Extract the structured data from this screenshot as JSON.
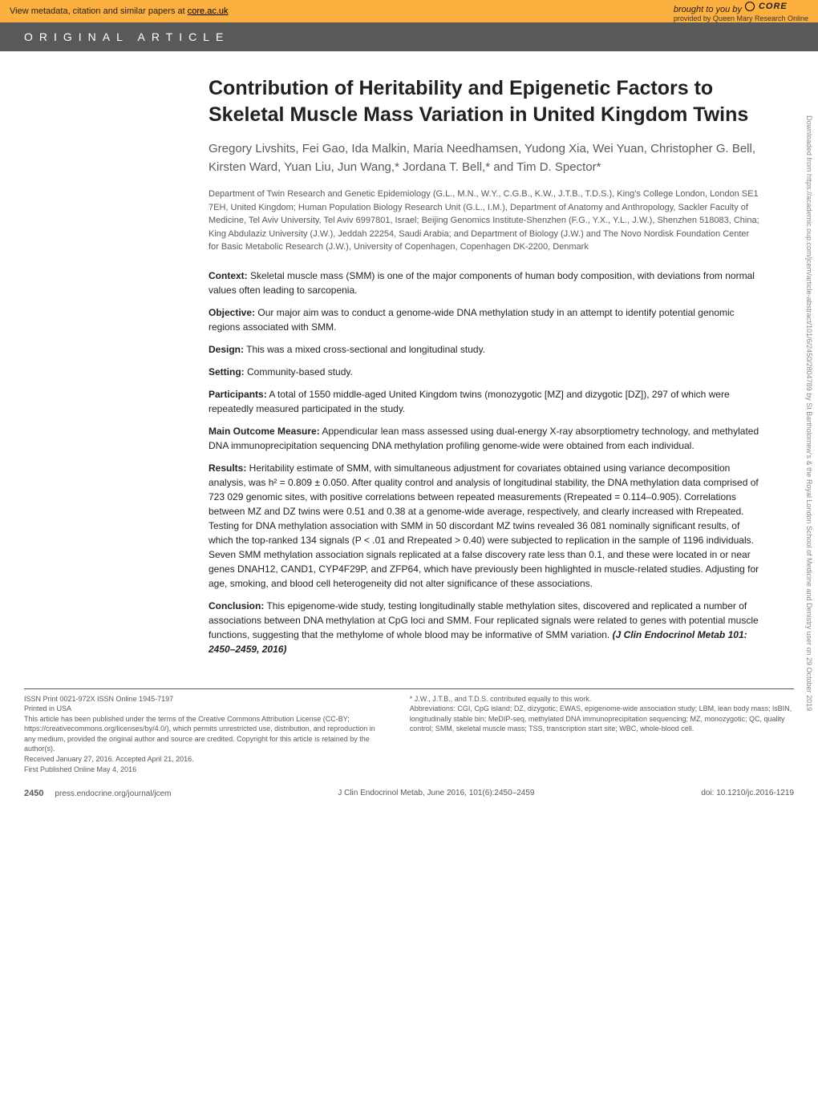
{
  "topbar": {
    "left_text": "View metadata, citation and similar papers at ",
    "left_link": "core.ac.uk",
    "right_prefix": "brought to you by ",
    "core": "CORE",
    "provided": "provided by Queen Mary Research Online"
  },
  "article_type": "ORIGINAL ARTICLE",
  "title": "Contribution of Heritability and Epigenetic Factors to Skeletal Muscle Mass Variation in United Kingdom Twins",
  "authors": "Gregory Livshits, Fei Gao, Ida Malkin, Maria Needhamsen, Yudong Xia, Wei Yuan, Christopher G. Bell, Kirsten Ward, Yuan Liu, Jun Wang,* Jordana T. Bell,* and Tim D. Spector*",
  "affiliations": "Department of Twin Research and Genetic Epidemiology (G.L., M.N., W.Y., C.G.B., K.W., J.T.B., T.D.S.), King's College London, London SE1 7EH, United Kingdom; Human Population Biology Research Unit (G.L., I.M.), Department of Anatomy and Anthropology, Sackler Faculty of Medicine, Tel Aviv University, Tel Aviv 6997801, Israel; Beijing Genomics Institute-Shenzhen (F.G., Y.X., Y.L., J.W.), Shenzhen 518083, China; King Abdulaziz University (J.W.), Jeddah 22254, Saudi Arabia; and Department of Biology (J.W.) and The Novo Nordisk Foundation Center for Basic Metabolic Research (J.W.), University of Copenhagen, Copenhagen DK-2200, Denmark",
  "abstract": {
    "context": {
      "label": "Context:",
      "text": " Skeletal muscle mass (SMM) is one of the major components of human body composition, with deviations from normal values often leading to sarcopenia."
    },
    "objective": {
      "label": "Objective:",
      "text": " Our major aim was to conduct a genome-wide DNA methylation study in an attempt to identify potential genomic regions associated with SMM."
    },
    "design": {
      "label": "Design:",
      "text": " This was a mixed cross-sectional and longitudinal study."
    },
    "setting": {
      "label": "Setting:",
      "text": " Community-based study."
    },
    "participants": {
      "label": "Participants:",
      "text": " A total of 1550 middle-aged United Kingdom twins (monozygotic [MZ] and dizygotic [DZ]), 297 of which were repeatedly measured participated in the study."
    },
    "main_outcome": {
      "label": "Main Outcome Measure:",
      "text": " Appendicular lean mass assessed using dual-energy X-ray absorptiometry technology, and methylated DNA immunoprecipitation sequencing DNA methylation profiling genome-wide were obtained from each individual."
    },
    "results": {
      "label": "Results:",
      "text": " Heritability estimate of SMM, with simultaneous adjustment for covariates obtained using variance decomposition analysis, was h² = 0.809 ± 0.050. After quality control and analysis of longitudinal stability, the DNA methylation data comprised of 723 029 genomic sites, with positive correlations between repeated measurements (Rrepeated = 0.114–0.905). Correlations between MZ and DZ twins were 0.51 and 0.38 at a genome-wide average, respectively, and clearly increased with Rrepeated. Testing for DNA methylation association with SMM in 50 discordant MZ twins revealed 36 081 nominally significant results, of which the top-ranked 134 signals (P < .01 and Rrepeated > 0.40) were subjected to replication in the sample of 1196 individuals. Seven SMM methylation association signals replicated at a false discovery rate less than 0.1, and these were located in or near genes DNAH12, CAND1, CYP4F29P, and ZFP64, which have previously been highlighted in muscle-related studies. Adjusting for age, smoking, and blood cell heterogeneity did not alter significance of these associations."
    },
    "conclusion": {
      "label": "Conclusion:",
      "text": " This epigenome-wide study, testing longitudinally stable methylation sites, discovered and replicated a number of associations between DNA methylation at CpG loci and SMM. Four replicated signals were related to genes with potential muscle functions, suggesting that the methylome of whole blood may be informative of SMM variation. "
    },
    "citation": "(J Clin Endocrinol Metab 101: 2450–2459, 2016)"
  },
  "footer": {
    "left": {
      "issn": "ISSN Print 0021-972X   ISSN Online 1945-7197",
      "printed": "Printed in USA",
      "license": "This article has been published under the terms of the Creative Commons Attribution License (CC-BY; https://creativecommons.org/licenses/by/4.0/), which permits unrestricted use, distribution, and reproduction in any medium, provided the original author and source are credited. Copyright for this article is retained by the author(s).",
      "received": "Received January 27, 2016. Accepted April 21, 2016.",
      "first_pub": "First Published Online May 4, 2016"
    },
    "right": {
      "contrib": "* J.W., J.T.B., and T.D.S. contributed equally to this work.",
      "abbrev": "Abbreviations: CGI, CpG island; DZ, dizygotic; EWAS, epigenome-wide association study; LBM, lean body mass; lsBIN, longitudinally stable bin; MeDIP-seq, methylated DNA immunoprecipitation sequencing; MZ, monozygotic; QC, quality control; SMM, skeletal muscle mass; TSS, transcription start site; WBC, whole-blood cell."
    }
  },
  "page_footer": {
    "page": "2450",
    "journal_url": "press.endocrine.org/journal/jcem",
    "journal": "J Clin Endocrinol Metab, June 2016, 101(6):2450–2459",
    "doi": "doi: 10.1210/jc.2016-1219"
  },
  "side_text": "Downloaded from https://academic.oup.com/jcem/article-abstract/101/6/2450/2804789 by St Bartholomew's & the Royal London School of Medicine and Denistry user on 29 October 2019",
  "colors": {
    "topbar_bg": "#fbb040",
    "article_bar_bg": "#58595b",
    "title_color": "#231f20",
    "author_color": "#58595b",
    "text_color": "#231f20"
  },
  "typography": {
    "title_fontsize": 25,
    "title_weight": 900,
    "author_fontsize": 15,
    "affil_fontsize": 11,
    "abstract_fontsize": 12,
    "footer_fontsize": 9
  }
}
